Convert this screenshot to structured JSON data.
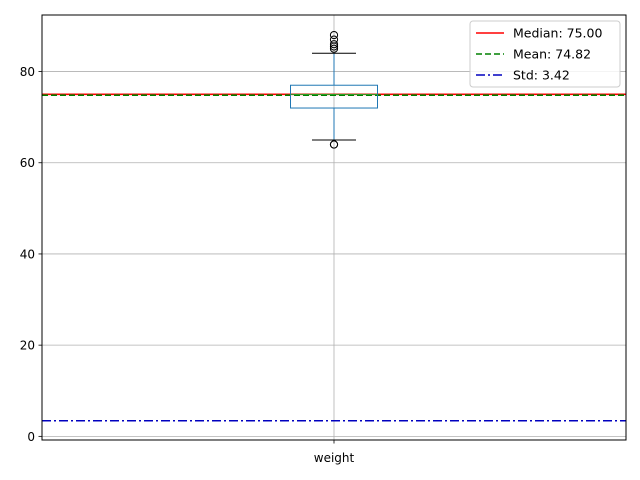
{
  "chart_data": {
    "type": "boxplot",
    "categories": [
      "weight"
    ],
    "ylim": [
      -0.8,
      92.4
    ],
    "yticks": [
      0,
      20,
      40,
      60,
      80
    ],
    "grid": true,
    "box": {
      "q1": 72,
      "median": 75,
      "q3": 77,
      "whisker_low": 65,
      "whisker_high": 84,
      "outliers": [
        64,
        64,
        85,
        85.5,
        86,
        87,
        88
      ]
    },
    "reference_lines": [
      {
        "label": "Median: 75.00",
        "value": 75.0,
        "color": "#ff0000",
        "style": "solid"
      },
      {
        "label": "Mean: 74.82",
        "value": 74.82,
        "color": "#008000",
        "style": "dashed"
      },
      {
        "label": "Std: 3.42",
        "value": 3.42,
        "color": "#0000bf",
        "style": "dashdot"
      }
    ],
    "legend_position": "top-right",
    "box_color": "#1f77b4"
  }
}
